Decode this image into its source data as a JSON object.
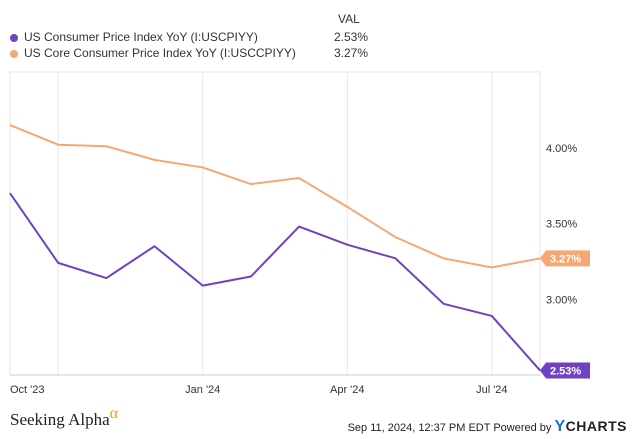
{
  "legend": {
    "header": "VAL",
    "items": [
      {
        "label": "US Consumer Price Index YoY (I:USCPIYY)",
        "value": "2.53%",
        "color": "#6f42c1"
      },
      {
        "label": "US Core Consumer Price Index YoY (I:USCCPIYY)",
        "value": "3.27%",
        "color": "#f5a873"
      }
    ]
  },
  "chart_data": {
    "type": "line",
    "title": "",
    "xlabel": "",
    "ylabel": "",
    "x_ticks": [
      "Oct '23",
      "Jan '24",
      "Apr '24",
      "Jul '24"
    ],
    "y_ticks": [
      "4.00%",
      "3.50%",
      "3.00%"
    ],
    "y_tick_values": [
      4.0,
      3.5,
      3.0
    ],
    "ylim": [
      2.5,
      4.5
    ],
    "x": [
      "Sep 2023",
      "Oct 2023",
      "Nov 2023",
      "Dec 2023",
      "Jan 2024",
      "Feb 2024",
      "Mar 2024",
      "Apr 2024",
      "May 2024",
      "Jun 2024",
      "Jul 2024",
      "Aug 2024"
    ],
    "series": [
      {
        "name": "US Consumer Price Index YoY (I:USCPIYY)",
        "color": "#6f42c1",
        "values": [
          3.7,
          3.24,
          3.14,
          3.35,
          3.09,
          3.15,
          3.48,
          3.36,
          3.27,
          2.97,
          2.89,
          2.53
        ],
        "end_label": "2.53%"
      },
      {
        "name": "US Core Consumer Price Index YoY (I:USCCPIYY)",
        "color": "#f5a873",
        "values": [
          4.15,
          4.02,
          4.01,
          3.92,
          3.87,
          3.76,
          3.8,
          3.61,
          3.41,
          3.27,
          3.21,
          3.27
        ],
        "end_label": "3.27%"
      }
    ]
  },
  "footer": {
    "brand": "Seeking Alpha",
    "brand_mark": "α",
    "timestamp": "Sep 11, 2024, 12:37 PM EDT",
    "powered_by": "Powered by",
    "ycharts_y": "Y",
    "ycharts_rest": "CHARTS"
  }
}
